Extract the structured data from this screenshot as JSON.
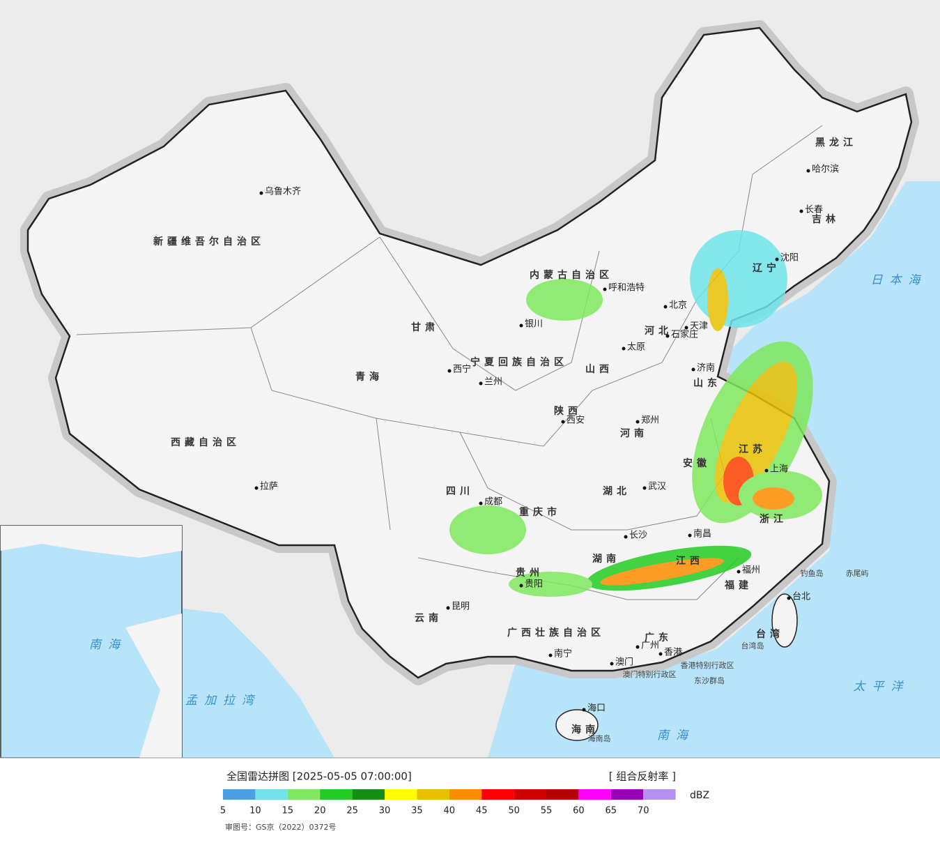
{
  "legend": {
    "title": "全国雷达拼图 [2025-05-05 07:00:00]",
    "product": "[ 组合反射率 ]",
    "unit": "dBZ",
    "ticks": [
      5,
      10,
      15,
      20,
      25,
      30,
      35,
      40,
      45,
      50,
      55,
      60,
      65,
      70
    ],
    "colors": [
      "#4aa0e6",
      "#6ee4ea",
      "#7fe85c",
      "#22cc22",
      "#138f13",
      "#ffff00",
      "#e8c000",
      "#ff8c00",
      "#ff0000",
      "#d00000",
      "#b40000",
      "#ff00ff",
      "#9a00b8",
      "#b690f0"
    ]
  },
  "approval": "审图号：GS京（2022）0372号",
  "provinces": [
    "新疆维吾尔自治区",
    "西藏自治区",
    "青海",
    "甘肃",
    "内蒙古自治区",
    "黑龙江",
    "吉林",
    "辽宁",
    "河北",
    "山西",
    "山东",
    "河南",
    "陕西",
    "湖北",
    "湖南",
    "四川",
    "贵州",
    "云南",
    "广西壮族自治区",
    "广东",
    "福建",
    "浙江",
    "江西",
    "台湾",
    "海南",
    "江苏",
    "安徽",
    "宁夏回族自治区",
    "重庆市"
  ],
  "cities": [
    "乌鲁木齐",
    "拉萨",
    "西宁",
    "兰州",
    "西安",
    "成都",
    "昆明",
    "贵阳",
    "南宁",
    "长沙",
    "武汉",
    "郑州",
    "太原",
    "石家庄",
    "北京",
    "天津",
    "济南",
    "呼和浩特",
    "沈阳",
    "长春",
    "哈尔滨",
    "上海",
    "南昌",
    "福州",
    "台北",
    "广州",
    "香港",
    "澳门",
    "海口",
    "银川"
  ],
  "seas": [
    "日本海",
    "太平洋",
    "南海",
    "孟加拉湾",
    "南海"
  ],
  "islands": [
    "钓鱼岛",
    "赤尾屿",
    "台湾岛",
    "东沙群岛",
    "海南岛",
    "香港特别行政区",
    "澳门特别行政区"
  ]
}
